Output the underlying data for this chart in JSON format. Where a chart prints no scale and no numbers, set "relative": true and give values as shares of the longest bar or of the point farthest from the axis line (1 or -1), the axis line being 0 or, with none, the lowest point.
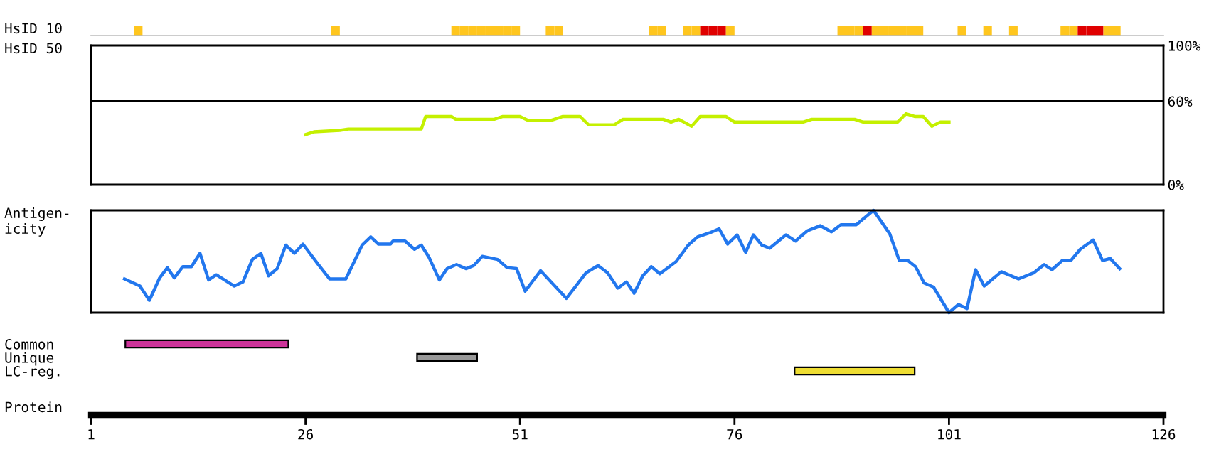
{
  "chart_data": [
    {
      "type": "bar",
      "relative": true,
      "ylabel": "HsID 10",
      "grid": false,
      "legend": false,
      "xlim": [
        1,
        126
      ],
      "tick_labels": false,
      "x": [
        6.5,
        29.5,
        43.5,
        44.5,
        45.5,
        46.5,
        47.5,
        48.5,
        49.5,
        50.5,
        54.5,
        55.5,
        66.5,
        67.5,
        70.5,
        71.5,
        72.5,
        73.5,
        74.5,
        75.5,
        88.5,
        89.5,
        90.5,
        91.5,
        92.5,
        93.5,
        94.5,
        95.5,
        96.5,
        97.5,
        102.5,
        105.5,
        108.5,
        114.5,
        115.5,
        116.5,
        117.5,
        118.5,
        119.5,
        120.5
      ],
      "values": [
        1,
        1,
        1,
        1,
        1,
        1,
        1,
        1,
        1,
        1,
        1,
        1,
        1,
        1,
        1,
        1,
        1,
        1,
        1,
        1,
        1,
        1,
        1,
        1,
        1,
        1,
        1,
        1,
        1,
        1,
        1,
        1,
        1,
        1,
        1,
        1,
        1,
        1,
        1,
        1
      ],
      "colors": [
        "#ffc61e",
        "#ffc61e",
        "#ffc61e",
        "#ffc61e",
        "#ffc61e",
        "#ffc61e",
        "#ffc61e",
        "#ffc61e",
        "#ffc61e",
        "#ffc61e",
        "#ffc61e",
        "#ffc61e",
        "#ffc61e",
        "#ffc61e",
        "#ffc61e",
        "#ffc61e",
        "#e00000",
        "#e00000",
        "#e00000",
        "#ffc61e",
        "#ffc61e",
        "#ffc61e",
        "#ffc61e",
        "#e00000",
        "#ffc61e",
        "#ffc61e",
        "#ffc61e",
        "#ffc61e",
        "#ffc61e",
        "#ffc61e",
        "#ffc61e",
        "#ffc61e",
        "#ffc61e",
        "#ffc61e",
        "#ffc61e",
        "#e00000",
        "#e00000",
        "#e00000",
        "#ffc61e",
        "#ffc61e"
      ]
    },
    {
      "type": "line",
      "ylabel": "HsID 50",
      "xlim": [
        1,
        126
      ],
      "ylim": [
        0,
        100
      ],
      "yticks": [
        {
          "value": 0,
          "label": "0%"
        },
        {
          "value": 60,
          "label": "60%"
        },
        {
          "value": 100,
          "label": "100%"
        }
      ],
      "tick_labels": "y",
      "grid": false,
      "legend": false,
      "ref_lines": [
        {
          "axis": "y",
          "value": 60,
          "color": "#000000"
        }
      ],
      "series": [
        {
          "color": "#c4f000",
          "x": [
            26,
            27,
            30,
            31,
            39.5,
            40,
            43,
            43.5,
            48,
            49,
            51,
            52,
            54.5,
            56,
            58,
            59,
            62,
            63,
            67.7,
            68.6,
            69.5,
            71,
            72,
            75,
            76,
            84,
            85,
            90,
            91,
            95,
            96,
            97,
            98,
            99,
            100,
            101
          ],
          "values": [
            36,
            38,
            39,
            40,
            40,
            49,
            49,
            47,
            47,
            49,
            49,
            46,
            46,
            49,
            49,
            43,
            43,
            47,
            47,
            45,
            47,
            42,
            49,
            49,
            45,
            45,
            47,
            47,
            45,
            45,
            51,
            49,
            49,
            42,
            45,
            45
          ]
        }
      ]
    },
    {
      "type": "line",
      "relative": true,
      "ylabel": "Antigen-\nicity",
      "xlim": [
        1,
        126
      ],
      "tick_labels": false,
      "grid": false,
      "legend": false,
      "series": [
        {
          "color": "#2277ee",
          "x": [
            4.9,
            6.7,
            7.8,
            9,
            9.9,
            10.7,
            11.7,
            12.7,
            13.7,
            14.7,
            15.6,
            17.7,
            18.7,
            19.8,
            20.8,
            21.7,
            22.7,
            23.7,
            24.7,
            25.7,
            27.5,
            28.8,
            30.7,
            32.6,
            33.6,
            34.5,
            35.9,
            36.2,
            37.6,
            38.7,
            39.5,
            40.4,
            41.6,
            42.5,
            43.6,
            44.7,
            45.6,
            46.6,
            48.4,
            49.5,
            50.6,
            51.6,
            53.4,
            56.4,
            57.6,
            58.7,
            60.1,
            61.2,
            62.4,
            63.4,
            64.3,
            65.3,
            66.3,
            67.3,
            69.2,
            70.6,
            71.7,
            73.1,
            74.2,
            75.2,
            76.3,
            77.3,
            78.2,
            79.2,
            80.1,
            82,
            83.1,
            84.5,
            86,
            87.3,
            88.4,
            90.2,
            92.2,
            94.1,
            95.2,
            96.2,
            97.1,
            98.1,
            99.2,
            101,
            102.1,
            103.1,
            104.1,
            105.1,
            107.1,
            109.1,
            110.9,
            112.1,
            113,
            114.2,
            115.2,
            116.3,
            117.8,
            118.9,
            119.8,
            120.9
          ],
          "values": [
            0.33,
            0.26,
            0.12,
            0.34,
            0.44,
            0.34,
            0.45,
            0.45,
            0.58,
            0.32,
            0.37,
            0.26,
            0.3,
            0.52,
            0.58,
            0.36,
            0.43,
            0.66,
            0.58,
            0.67,
            0.47,
            0.33,
            0.33,
            0.66,
            0.74,
            0.67,
            0.67,
            0.7,
            0.7,
            0.62,
            0.66,
            0.54,
            0.32,
            0.43,
            0.47,
            0.43,
            0.46,
            0.55,
            0.52,
            0.44,
            0.43,
            0.21,
            0.41,
            0.14,
            0.27,
            0.39,
            0.46,
            0.39,
            0.24,
            0.3,
            0.19,
            0.36,
            0.45,
            0.38,
            0.5,
            0.66,
            0.74,
            0.78,
            0.82,
            0.67,
            0.76,
            0.59,
            0.76,
            0.66,
            0.63,
            0.76,
            0.7,
            0.8,
            0.85,
            0.79,
            0.86,
            0.86,
            1,
            0.77,
            0.51,
            0.51,
            0.45,
            0.29,
            0.25,
            0,
            0.08,
            0.04,
            0.42,
            0.26,
            0.4,
            0.33,
            0.39,
            0.47,
            0.42,
            0.51,
            0.51,
            0.62,
            0.71,
            0.51,
            0.53,
            0.43
          ]
        }
      ]
    },
    {
      "type": "bar",
      "orientation": "horizontal",
      "categories": [
        "Common",
        "Unique",
        "LC-reg."
      ],
      "base": [
        5,
        39,
        83
      ],
      "values": [
        19,
        7,
        14
      ],
      "colors": [
        "#cc3399",
        "#999999",
        "#eedd33"
      ],
      "xlim": [
        1,
        126
      ],
      "xticks": [
        1,
        26,
        51,
        76,
        101,
        126
      ],
      "xlabel": "Protein",
      "grid": false,
      "legend": false
    }
  ]
}
